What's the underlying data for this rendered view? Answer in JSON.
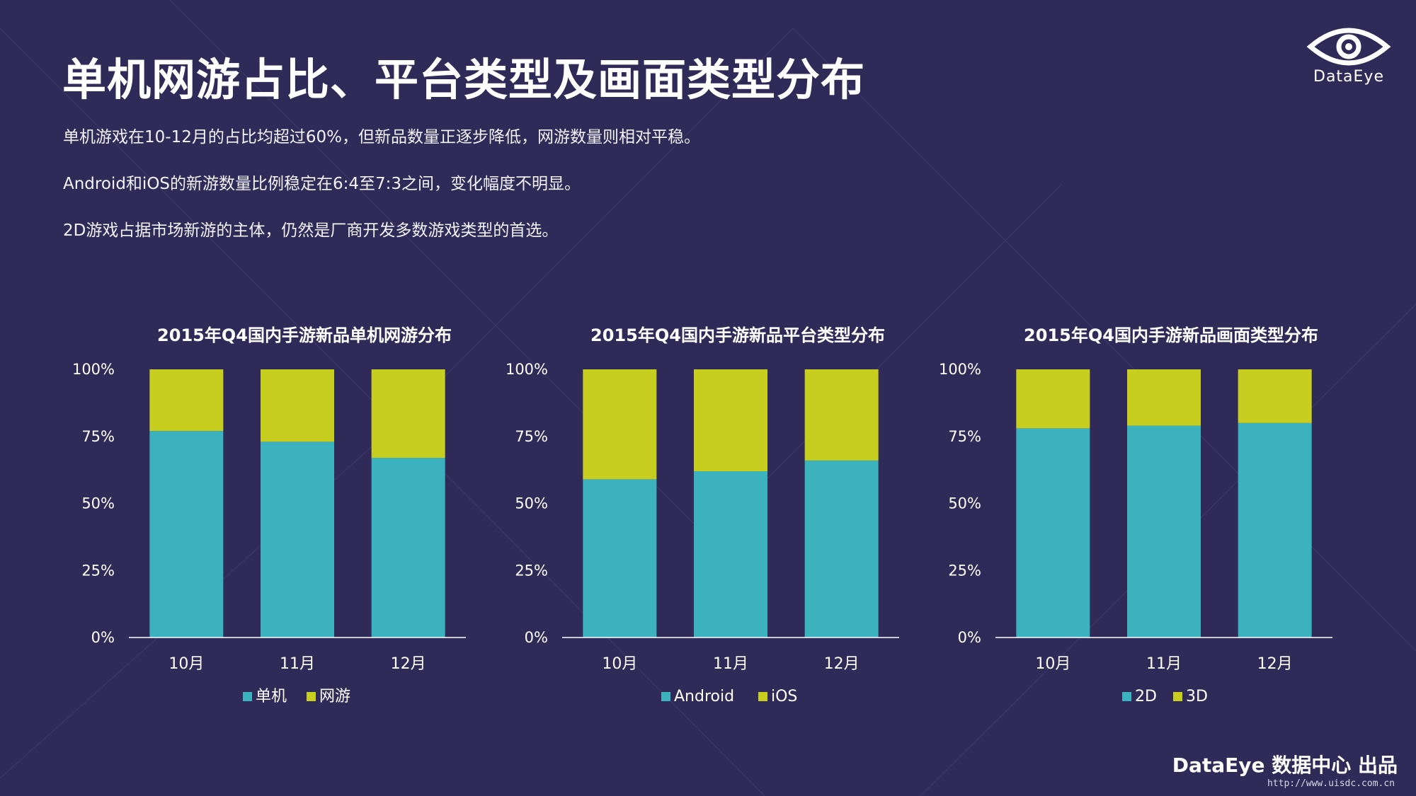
{
  "colors": {
    "background": "#302a58",
    "primary_series": "#3db2bf",
    "secondary_series": "#c8ce20",
    "text": "#ffffff"
  },
  "header": {
    "title": "单机网游占比、平台类型及画面类型分布",
    "lines": [
      "单机游戏在10-12月的占比均超过60%，但新品数量正逐步降低，网游数量则相对平稳。",
      "Android和iOS的新游数量比例稳定在6:4至7:3之间，变化幅度不明显。",
      "2D游戏占据市场新游的主体，仍然是厂商开发多数游戏类型的首选。"
    ]
  },
  "logo": {
    "icon": "eye-logo-icon",
    "text": "DataEye"
  },
  "footer": {
    "credit": "DataEye 数据中心 出品",
    "site": "http://www.uisdc.com.cn"
  },
  "chart_data": [
    {
      "type": "bar",
      "stacked": true,
      "title": "2015年Q4国内手游新品单机网游分布",
      "categories": [
        "10月",
        "11月",
        "12月"
      ],
      "series": [
        {
          "name": "单机",
          "values": [
            77,
            73,
            67
          ]
        },
        {
          "name": "网游",
          "values": [
            23,
            27,
            33
          ]
        }
      ],
      "ylim": [
        0,
        100
      ],
      "yticks": [
        "0%",
        "25%",
        "50%",
        "75%",
        "100%"
      ],
      "legend": "bottom"
    },
    {
      "type": "bar",
      "stacked": true,
      "title": "2015年Q4国内手游新品平台类型分布",
      "categories": [
        "10月",
        "11月",
        "12月"
      ],
      "series": [
        {
          "name": "Android",
          "values": [
            59,
            62,
            66
          ]
        },
        {
          "name": "iOS",
          "values": [
            41,
            38,
            34
          ]
        }
      ],
      "ylim": [
        0,
        100
      ],
      "yticks": [
        "0%",
        "25%",
        "50%",
        "75%",
        "100%"
      ],
      "legend": "bottom"
    },
    {
      "type": "bar",
      "stacked": true,
      "title": "2015年Q4国内手游新品画面类型分布",
      "categories": [
        "10月",
        "11月",
        "12月"
      ],
      "series": [
        {
          "name": "2D",
          "values": [
            78,
            79,
            80
          ]
        },
        {
          "name": "3D",
          "values": [
            22,
            21,
            20
          ]
        }
      ],
      "ylim": [
        0,
        100
      ],
      "yticks": [
        "0%",
        "25%",
        "50%",
        "75%",
        "100%"
      ],
      "legend": "bottom"
    }
  ]
}
